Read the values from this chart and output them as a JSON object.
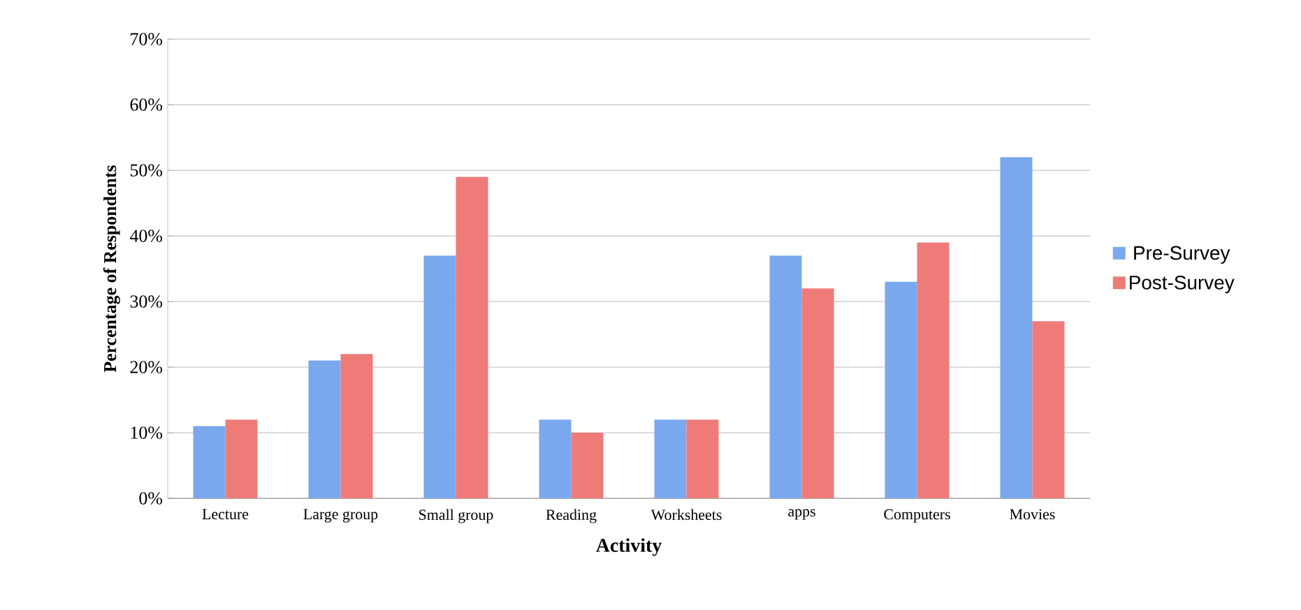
{
  "chart_data": {
    "type": "bar",
    "xlabel": "Activity",
    "ylabel": "Percentage of Respondents",
    "categories": [
      "Lecture",
      "Large group",
      "Small group",
      "Reading",
      "Worksheets",
      "apps",
      "Computers",
      "Movies"
    ],
    "series": [
      {
        "name": "Pre-Survey",
        "color": "#7aa8ee",
        "values": [
          11,
          21,
          37,
          12,
          12,
          37,
          33,
          52
        ]
      },
      {
        "name": "Post-Survey",
        "color": "#ee7b78",
        "values": [
          12,
          22,
          49,
          10,
          12,
          32,
          39,
          27
        ]
      }
    ],
    "ylim": [
      0,
      70
    ],
    "yticks": [
      {
        "value": 0,
        "label": "0%"
      },
      {
        "value": 10,
        "label": "10%"
      },
      {
        "value": 20,
        "label": "20%"
      },
      {
        "value": 30,
        "label": "30%"
      },
      {
        "value": 40,
        "label": "40%"
      },
      {
        "value": 50,
        "label": "50%"
      },
      {
        "value": 60,
        "label": "60%"
      },
      {
        "value": 70,
        "label": "70%"
      }
    ],
    "grid": "y",
    "legend": "right"
  }
}
